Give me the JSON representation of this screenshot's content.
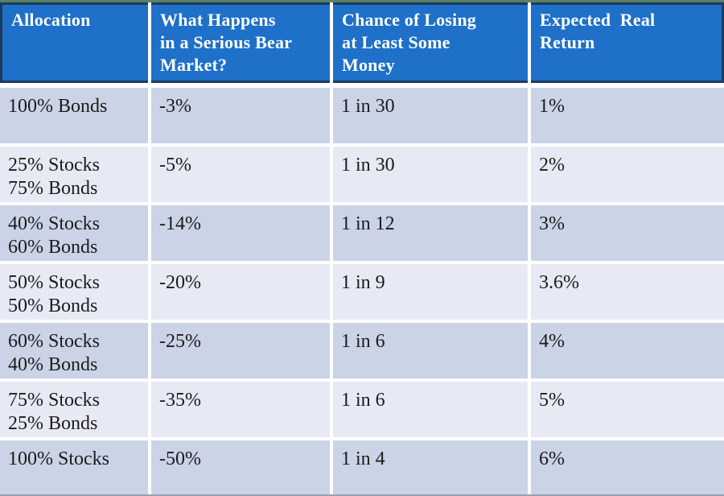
{
  "colors": {
    "top-strip": "#5A8264",
    "header-fill": "#1E70C8",
    "header-border": "#1B3A5F",
    "header-text": "#FFFFFF",
    "row-dark": "#CBD3E6",
    "row-light": "#E7EAF4",
    "grid-white": "#FFFFFF",
    "body-text": "#1B1B1B",
    "bottom-line": "#99A0AE"
  },
  "table": {
    "columns": [
      {
        "label": "Allocation"
      },
      {
        "label": "What Happens\nin a Serious Bear\nMarket?"
      },
      {
        "label": "Chance of Losing\nat Least Some\nMoney"
      },
      {
        "label": "Expected  Real\nReturn"
      }
    ],
    "rows": [
      {
        "allocation": "100% Bonds",
        "bear_market": "-3%",
        "chance_losing": "1 in 30",
        "expected_return": "1%"
      },
      {
        "allocation": "25% Stocks\n75% Bonds",
        "bear_market": "-5%",
        "chance_losing": "1 in 30",
        "expected_return": "2%"
      },
      {
        "allocation": "40% Stocks\n60% Bonds",
        "bear_market": "-14%",
        "chance_losing": "1 in 12",
        "expected_return": "3%"
      },
      {
        "allocation": "50% Stocks\n50% Bonds",
        "bear_market": "-20%",
        "chance_losing": "1 in 9",
        "expected_return": "3.6%"
      },
      {
        "allocation": "60% Stocks\n40% Bonds",
        "bear_market": "-25%",
        "chance_losing": "1 in 6",
        "expected_return": "4%"
      },
      {
        "allocation": "75% Stocks\n25% Bonds",
        "bear_market": "-35%",
        "chance_losing": "1 in 6",
        "expected_return": "5%"
      },
      {
        "allocation": "100% Stocks",
        "bear_market": "-50%",
        "chance_losing": "1 in 4",
        "expected_return": "6%"
      }
    ]
  }
}
